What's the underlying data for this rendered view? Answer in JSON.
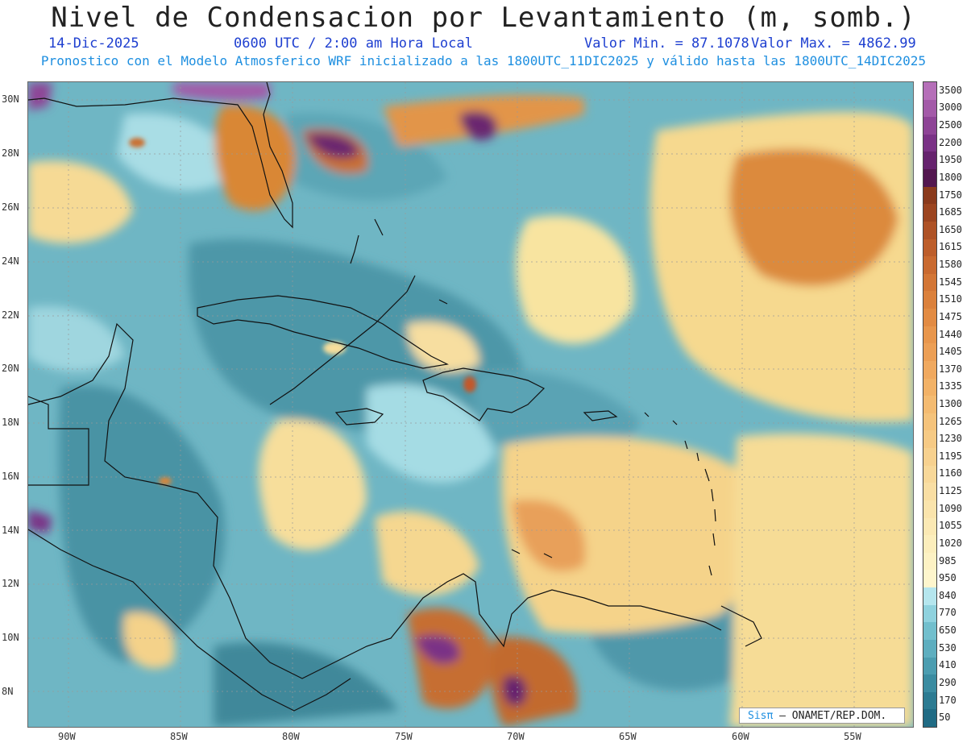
{
  "header": {
    "title": "Nivel de Condensacion por Levantamiento (m, somb.)",
    "date": "14-Dic-2025",
    "time": "0600 UTC / 2:00 am Hora Local",
    "min_value": "Valor Min. = 87.1078",
    "max_value": "Valor Max. = 4862.99",
    "subtitle": "Pronostico con el Modelo Atmosferico WRF inicializado a las 1800UTC_11DIC2025 y válido hasta las  1800UTC_14DIC2025"
  },
  "axes": {
    "lat_labels": [
      "30N",
      "28N",
      "26N",
      "24N",
      "22N",
      "20N",
      "18N",
      "16N",
      "14N",
      "12N",
      "10N",
      "8N"
    ],
    "lon_labels": [
      "90W",
      "85W",
      "80W",
      "75W",
      "70W",
      "65W",
      "60W",
      "55W"
    ]
  },
  "colorbar": {
    "labels": [
      "3500",
      "3000",
      "2500",
      "2200",
      "1950",
      "1800",
      "1750",
      "1685",
      "1650",
      "1615",
      "1580",
      "1545",
      "1510",
      "1475",
      "1440",
      "1405",
      "1370",
      "1335",
      "1300",
      "1265",
      "1230",
      "1195",
      "1160",
      "1125",
      "1090",
      "1055",
      "1020",
      "985",
      "950",
      "840",
      "770",
      "650",
      "530",
      "410",
      "290",
      "170",
      "50"
    ],
    "colors": [
      "#b56fb8",
      "#a35aa8",
      "#8e4496",
      "#7a3286",
      "#66236e",
      "#53174f",
      "#8a3a1c",
      "#9c4520",
      "#ae5226",
      "#bd5e2b",
      "#c96a30",
      "#d37636",
      "#db813c",
      "#e28b43",
      "#e8964c",
      "#ec9f55",
      "#f0a95f",
      "#f2b267",
      "#f4bb71",
      "#f5c37b",
      "#f6ca85",
      "#f7d18f",
      "#f8d899",
      "#f9dea3",
      "#fae4ac",
      "#fbe9b4",
      "#fceebc",
      "#fdf2c4",
      "#fef6cd",
      "#b5e6ee",
      "#8fd2de",
      "#72bfcd",
      "#5eaebf",
      "#4c9db0",
      "#3b8ca1",
      "#2c7b92",
      "#206b84"
    ]
  },
  "credit": {
    "brand": "Sisπ",
    "text": " – ONAMET/REP.DOM."
  }
}
